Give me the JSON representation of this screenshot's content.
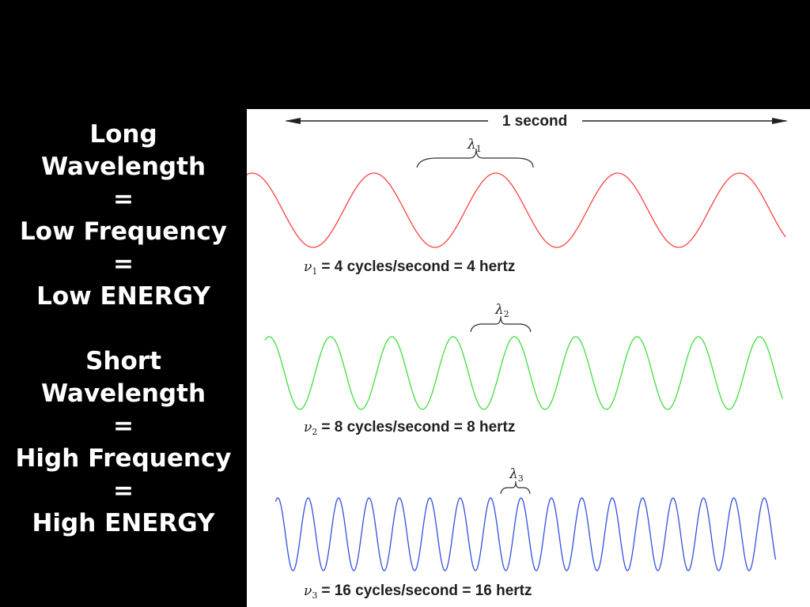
{
  "left_panel": {
    "long_block": [
      "Long",
      "Wavelength",
      "=",
      "Low Frequency",
      "=",
      "Low ENERGY"
    ],
    "short_block": [
      "Short",
      "Wavelength",
      "=",
      "High Frequency",
      "=",
      "High ENERGY"
    ]
  },
  "diagram": {
    "time_label": "1 second",
    "waves": [
      {
        "cycles": 4,
        "color": "#ff4040",
        "lambda_symbol": "λ",
        "lambda_sub": "1",
        "nu_symbol": "ν",
        "nu_sub": "1",
        "caption": "= 4 cycles/second = 4 hertz"
      },
      {
        "cycles": 8,
        "color": "#40dd40",
        "lambda_symbol": "λ",
        "lambda_sub": "2",
        "nu_symbol": "ν",
        "nu_sub": "2",
        "caption": "= 8 cycles/second = 8 hertz"
      },
      {
        "cycles": 16,
        "color": "#3050e0",
        "lambda_symbol": "λ",
        "lambda_sub": "3",
        "nu_symbol": "ν",
        "nu_sub": "3",
        "caption": "= 16 cycles/second = 16 hertz"
      }
    ]
  }
}
